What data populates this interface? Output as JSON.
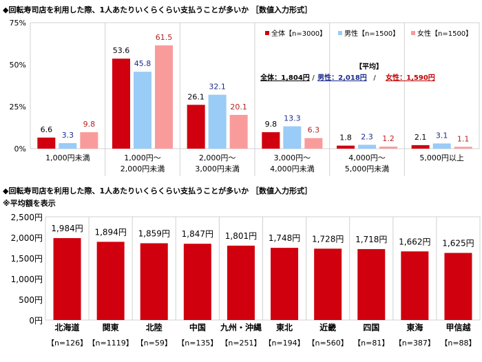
{
  "chart_data": [
    {
      "type": "bar",
      "title": "◆回転寿司店を利用した際、1人あたりいくらくらい支払うことが多いか ［数値入力形式］",
      "categories": [
        [
          "1,000円未満"
        ],
        [
          "1,000円～",
          "2,000円未満"
        ],
        [
          "2,000円～",
          "3,000円未満"
        ],
        [
          "3,000円～",
          "4,000円未満"
        ],
        [
          "4,000円～",
          "5,000円未満"
        ],
        [
          "5,000円以上"
        ]
      ],
      "yticks": [
        "0%",
        "25%",
        "50%",
        "75%"
      ],
      "ylim": [
        0,
        75
      ],
      "grid": "vertical category separators",
      "legend_position": "top-right",
      "series": [
        {
          "name": "全体【n=3000】",
          "color": "#d0000e",
          "label_color": "#000000",
          "values": [
            6.6,
            53.6,
            26.1,
            9.8,
            1.8,
            2.1
          ]
        },
        {
          "name": "男性【n=1500】",
          "color": "#99ccf7",
          "label_color": "#1a2a8a",
          "values": [
            3.3,
            45.8,
            32.1,
            13.3,
            2.3,
            3.1
          ]
        },
        {
          "name": "女性【n=1500】",
          "color": "#fa9b9b",
          "label_color": "#b22222",
          "values": [
            9.8,
            61.5,
            20.1,
            6.3,
            1.2,
            1.1
          ]
        }
      ],
      "annotation": {
        "heading": "【平均】",
        "items": [
          {
            "text": "全体：1,804円",
            "color": "#000000"
          },
          {
            "text": "男性：2,018円",
            "color": "#1a2a8a"
          },
          {
            "text": "女性：1,590円",
            "color": "#c00000"
          }
        ],
        "separator": "/"
      }
    },
    {
      "type": "bar",
      "title": "◆回転寿司店を利用した際、1人あたりいくらくらい支払うことが多いか ［数値入力形式］",
      "subtitle": "※平均額を表示",
      "categories": [
        "北海道",
        "関東",
        "北陸",
        "中国",
        "九州・沖縄",
        "東北",
        "近畿",
        "四国",
        "東海",
        "甲信越"
      ],
      "sample_sizes": [
        "【n=126】",
        "【n=1119】",
        "【n=59】",
        "【n=135】",
        "【n=251】",
        "【n=194】",
        "【n=560】",
        "【n=81】",
        "【n=387】",
        "【n=88】"
      ],
      "values": [
        1984,
        1894,
        1859,
        1847,
        1801,
        1748,
        1728,
        1718,
        1662,
        1625
      ],
      "value_labels": [
        "1,984円",
        "1,894円",
        "1,859円",
        "1,847円",
        "1,801円",
        "1,748円",
        "1,728円",
        "1,718円",
        "1,662円",
        "1,625円"
      ],
      "yticks": [
        "0円",
        "500円",
        "1,000円",
        "1,500円",
        "2,000円",
        "2,500円"
      ],
      "ylim": [
        0,
        2500
      ],
      "color": "#d0000e"
    }
  ]
}
